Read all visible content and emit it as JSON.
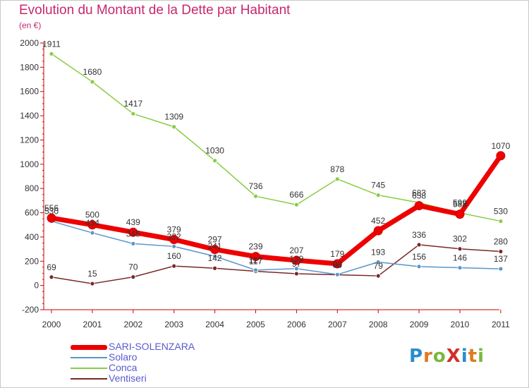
{
  "title": "Evolution du Montant de la Dette par Habitant",
  "subtitle": "(en €)",
  "logo": {
    "text": "ProXiti",
    "letter_colors": [
      "#2a8ccd",
      "#e07820",
      "#7ab83c",
      "#d0302a",
      "#2a8ccd",
      "#e07820",
      "#7ab83c"
    ]
  },
  "colors": {
    "title": "#c8286e",
    "axis": "#cc0000",
    "grid": "#dddddd",
    "legend_text": "#5a5ad0"
  },
  "chart_data": {
    "type": "line",
    "title": "Evolution du Montant de la Dette par Habitant",
    "subtitle": "(en €)",
    "x": [
      "2000",
      "2001",
      "2002",
      "2003",
      "2004",
      "2005",
      "2006",
      "2007",
      "2008",
      "2009",
      "2010",
      "2011"
    ],
    "ylim": [
      -200,
      2000
    ],
    "yticks": [
      -200,
      0,
      200,
      400,
      600,
      800,
      1000,
      1200,
      1400,
      1600,
      1800,
      2000
    ],
    "grid": false,
    "legend_position": "bottom-left",
    "series": [
      {
        "name": "SARI-SOLENZARA",
        "color": "#ee0000",
        "thick": true,
        "values": [
          556,
          500,
          439,
          379,
          297,
          239,
          207,
          179,
          452,
          658,
          588,
          1070
        ],
        "labels": [
          "556",
          "500",
          "439",
          "379",
          "297",
          "239",
          "207",
          "179",
          "452",
          "658",
          "588",
          "1070"
        ]
      },
      {
        "name": "Solaro",
        "color": "#5a96c8",
        "thick": false,
        "values": [
          530,
          434,
          345,
          322,
          241,
          127,
          139,
          90,
          193,
          156,
          146,
          137
        ],
        "labels": [
          "530",
          "434",
          "345",
          "322",
          "241",
          "127",
          "139",
          "90",
          "193",
          "156",
          "146",
          "137"
        ]
      },
      {
        "name": "Conca",
        "color": "#88cc44",
        "thick": false,
        "values": [
          1911,
          1680,
          1417,
          1309,
          1030,
          736,
          666,
          878,
          745,
          683,
          599,
          530
        ],
        "labels": [
          "1911",
          "1680",
          "1417",
          "1309",
          "1030",
          "736",
          "666",
          "878",
          "745",
          "683",
          "599",
          "530"
        ]
      },
      {
        "name": "Ventiseri",
        "color": "#7a2828",
        "thick": false,
        "values": [
          69,
          15,
          70,
          160,
          142,
          117,
          97,
          88,
          79,
          336,
          302,
          280
        ],
        "labels": [
          "69",
          "15",
          "70",
          "160",
          "142",
          "117",
          "97",
          "88",
          "79",
          "336",
          "302",
          "280"
        ]
      }
    ]
  }
}
